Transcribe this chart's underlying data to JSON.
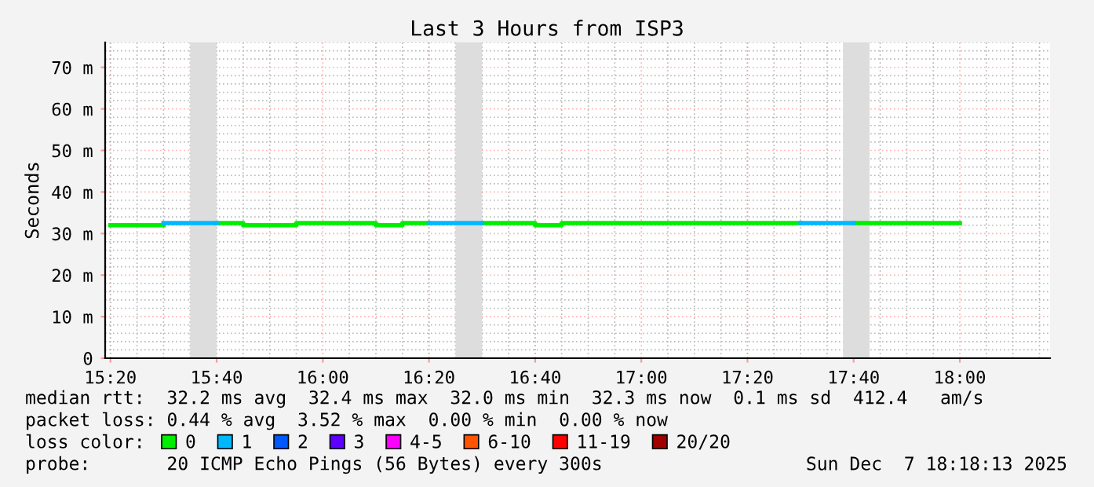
{
  "chart_data": {
    "type": "step",
    "title": "Last 3 Hours from ISP3",
    "ylabel": "Seconds",
    "x": [
      15.3333,
      15.4167,
      15.5,
      15.5833,
      15.6667,
      15.75,
      15.8333,
      15.9167,
      16.0,
      16.0833,
      16.1667,
      16.25,
      16.3333,
      16.4167,
      16.5,
      16.5833,
      16.6667,
      16.75,
      16.8333,
      16.9167,
      17.0,
      17.0833,
      17.1667,
      17.25,
      17.3333,
      17.4167,
      17.5,
      17.5833,
      17.6667,
      17.75,
      17.8333,
      17.9167,
      18.0
    ],
    "series": [
      {
        "name": "0",
        "color": "#00ee00",
        "values": [
          32.0,
          32.0,
          32.0,
          null,
          32.5,
          32.0,
          32.0,
          32.5,
          32.5,
          32.5,
          32.0,
          32.5,
          32.5,
          null,
          32.5,
          32.5,
          32.0,
          32.5,
          32.5,
          32.5,
          32.5,
          32.5,
          32.5,
          32.5,
          32.5,
          32.5,
          32.5,
          null,
          32.5,
          32.5,
          32.5,
          32.5,
          32.5
        ]
      },
      {
        "name": "1",
        "color": "#00b8ff",
        "values": [
          null,
          null,
          32.5,
          32.5,
          32.5,
          null,
          null,
          null,
          null,
          null,
          null,
          null,
          32.5,
          32.5,
          32.5,
          null,
          null,
          null,
          null,
          null,
          null,
          null,
          null,
          null,
          null,
          null,
          32.5,
          32.5,
          32.5,
          null,
          null,
          null,
          null
        ]
      },
      {
        "name": "2",
        "color": "#0059ff",
        "values": [
          null,
          null,
          null,
          null,
          null,
          null,
          null,
          null,
          null,
          null,
          null,
          null,
          null,
          null,
          null,
          null,
          null,
          null,
          null,
          null,
          null,
          null,
          null,
          null,
          null,
          null,
          null,
          null,
          null,
          null,
          null,
          null,
          null
        ]
      },
      {
        "name": "3",
        "color": "#5e00ff",
        "values": [
          null,
          null,
          null,
          null,
          null,
          null,
          null,
          null,
          null,
          null,
          null,
          null,
          null,
          null,
          null,
          null,
          null,
          null,
          null,
          null,
          null,
          null,
          null,
          null,
          null,
          null,
          null,
          null,
          null,
          null,
          null,
          null,
          null
        ]
      },
      {
        "name": "4-5",
        "color": "#ff00ff",
        "values": [
          null,
          null,
          null,
          null,
          null,
          null,
          null,
          null,
          null,
          null,
          null,
          null,
          null,
          null,
          null,
          null,
          null,
          null,
          null,
          null,
          null,
          null,
          null,
          null,
          null,
          null,
          null,
          null,
          null,
          null,
          null,
          null,
          null
        ]
      },
      {
        "name": "6-10",
        "color": "#ff5500",
        "values": [
          null,
          null,
          null,
          null,
          null,
          null,
          null,
          null,
          null,
          null,
          null,
          null,
          null,
          null,
          null,
          null,
          null,
          null,
          null,
          null,
          null,
          null,
          null,
          null,
          null,
          null,
          null,
          null,
          null,
          null,
          null,
          null,
          null
        ]
      },
      {
        "name": "11-19",
        "color": "#ff0000",
        "values": [
          null,
          null,
          null,
          null,
          null,
          null,
          null,
          null,
          null,
          null,
          null,
          null,
          null,
          null,
          null,
          null,
          null,
          null,
          null,
          null,
          null,
          null,
          null,
          null,
          null,
          null,
          null,
          null,
          null,
          null,
          null,
          null,
          null
        ]
      },
      {
        "name": "20/20",
        "color": "#a10000",
        "values": [
          null,
          null,
          null,
          null,
          null,
          null,
          null,
          null,
          null,
          null,
          null,
          null,
          null,
          null,
          null,
          null,
          null,
          null,
          null,
          null,
          null,
          null,
          null,
          null,
          null,
          null,
          null,
          null,
          null,
          null,
          null,
          null,
          null
        ]
      }
    ],
    "legend": "bottom",
    "legend_title": "loss color:",
    "bands": [
      {
        "axis": "x",
        "from": 15.5833,
        "to": 15.6667,
        "color": "#dddddd"
      },
      {
        "axis": "x",
        "from": 16.4167,
        "to": 16.5,
        "color": "#dddddd"
      },
      {
        "axis": "x",
        "from": 17.6333,
        "to": 17.7167,
        "color": "#dddddd"
      }
    ],
    "xlim": [
      15.3167,
      18.2833
    ],
    "xticks": [
      {
        "value": 15.3333,
        "label": "15:20"
      },
      {
        "value": 15.6667,
        "label": "15:40"
      },
      {
        "value": 16.0,
        "label": "16:00"
      },
      {
        "value": 16.3333,
        "label": "16:20"
      },
      {
        "value": 16.6667,
        "label": "16:40"
      },
      {
        "value": 17.0,
        "label": "17:00"
      },
      {
        "value": 17.3333,
        "label": "17:20"
      },
      {
        "value": 17.6667,
        "label": "17:40"
      },
      {
        "value": 18.0,
        "label": "18:00"
      }
    ],
    "ylim": [
      0,
      76
    ],
    "yticks": [
      0,
      {
        "value": 10,
        "label": "10 m"
      },
      {
        "value": 20,
        "label": "20 m"
      },
      {
        "value": 30,
        "label": "30 m"
      },
      {
        "value": 40,
        "label": "40 m"
      },
      {
        "value": 50,
        "label": "50 m"
      },
      {
        "value": 60,
        "label": "60 m"
      },
      {
        "value": 70,
        "label": "70 m"
      }
    ],
    "grid": true,
    "annotations": [
      "median rtt:  32.2 ms avg  32.4 ms max  32.0 ms min  32.3 ms now  0.1 ms sd  412.4   am/s",
      "packet loss: 0.44 % avg  3.52 % max  0.00 % min  0.00 % now",
      "probe:       20 ICMP Echo Pings (56 Bytes) every 300s",
      "Sun Dec  7 18:18:13 2025"
    ]
  }
}
